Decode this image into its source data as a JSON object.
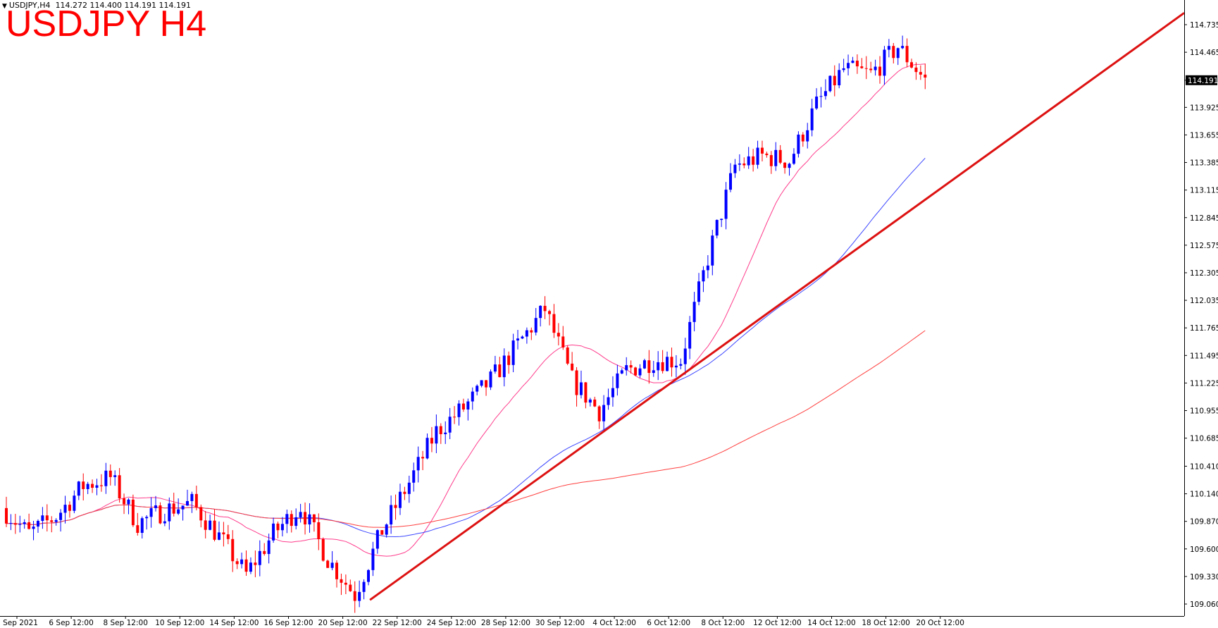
{
  "header": {
    "symbol_info": "USDJPY,H4",
    "ohlc_text": "114.272 114.400 114.191 114.191",
    "title": "USDJPY H4"
  },
  "colors": {
    "bull": "#0000ff",
    "bear": "#ff0000",
    "ma_fast": "#ff3c8c",
    "ma_mid": "#3c46ff",
    "ma_slow": "#ff4040",
    "trendline": "#dd1111"
  },
  "chart_data": {
    "type": "candlestick",
    "symbol": "USDJPY",
    "timeframe": "H4",
    "current_price": "114.191",
    "ylim": [
      108.96,
      114.86
    ],
    "y_ticks": [
      "114.735",
      "114.465",
      "114.191",
      "113.925",
      "113.655",
      "113.385",
      "113.115",
      "112.845",
      "112.575",
      "112.305",
      "112.035",
      "111.765",
      "111.495",
      "111.225",
      "110.955",
      "110.685",
      "110.410",
      "110.140",
      "109.870",
      "109.600",
      "109.330",
      "109.060"
    ],
    "x_ticks": [
      "2 Sep 2021",
      "6 Sep 12:00",
      "8 Sep 12:00",
      "10 Sep 12:00",
      "14 Sep 12:00",
      "16 Sep 12:00",
      "20 Sep 12:00",
      "22 Sep 12:00",
      "24 Sep 12:00",
      "28 Sep 12:00",
      "30 Sep 12:00",
      "4 Oct 12:00",
      "6 Oct 12:00",
      "8 Oct 12:00",
      "12 Oct 12:00",
      "14 Oct 12:00",
      "18 Oct 12:00",
      "20 Oct 12:00"
    ],
    "close_path": [
      {
        "date": "2 Sep 2021",
        "close": 110.0
      },
      {
        "date": "3 Sep",
        "close": 109.75
      },
      {
        "date": "6 Sep 12:00",
        "close": 109.92
      },
      {
        "date": "7 Sep",
        "close": 110.22
      },
      {
        "date": "8 Sep 12:00",
        "close": 110.3
      },
      {
        "date": "9 Sep",
        "close": 109.85
      },
      {
        "date": "10 Sep 12:00",
        "close": 109.98
      },
      {
        "date": "13 Sep",
        "close": 110.05
      },
      {
        "date": "14 Sep 12:00",
        "close": 109.72
      },
      {
        "date": "15 Sep",
        "close": 109.35
      },
      {
        "date": "16 Sep 12:00",
        "close": 109.75
      },
      {
        "date": "17 Sep",
        "close": 110.02
      },
      {
        "date": "20 Sep 12:00",
        "close": 109.5
      },
      {
        "date": "21 Sep",
        "close": 109.15
      },
      {
        "date": "22 Sep 12:00",
        "close": 109.78
      },
      {
        "date": "23 Sep",
        "close": 110.25
      },
      {
        "date": "24 Sep 12:00",
        "close": 110.75
      },
      {
        "date": "27 Sep",
        "close": 110.98
      },
      {
        "date": "28 Sep 12:00",
        "close": 111.25
      },
      {
        "date": "29 Sep",
        "close": 111.6
      },
      {
        "date": "30 Sep 12:00",
        "close": 111.95
      },
      {
        "date": "1 Oct",
        "close": 111.25
      },
      {
        "date": "4 Oct 12:00",
        "close": 110.95
      },
      {
        "date": "5 Oct",
        "close": 111.35
      },
      {
        "date": "6 Oct 12:00",
        "close": 111.45
      },
      {
        "date": "7 Oct",
        "close": 111.45
      },
      {
        "date": "8 Oct 12:00",
        "close": 112.45
      },
      {
        "date": "11 Oct",
        "close": 113.35
      },
      {
        "date": "12 Oct 12:00",
        "close": 113.45
      },
      {
        "date": "13 Oct",
        "close": 113.4
      },
      {
        "date": "14 Oct 12:00",
        "close": 113.95
      },
      {
        "date": "15 Oct",
        "close": 114.3
      },
      {
        "date": "18 Oct 12:00",
        "close": 114.25
      },
      {
        "date": "19 Oct",
        "close": 114.52
      },
      {
        "date": "20 Oct 12:00",
        "close": 114.19
      }
    ],
    "trendline": {
      "from": {
        "date": "21 Sep",
        "price": 109.1
      },
      "to": {
        "date": "right edge",
        "price": 114.85
      }
    },
    "moving_averages": [
      {
        "role": "fast",
        "color": "#ff3c8c"
      },
      {
        "role": "mid",
        "color": "#3c46ff"
      },
      {
        "role": "slow",
        "color": "#ff4040"
      }
    ],
    "grid": false,
    "legend": "none"
  }
}
